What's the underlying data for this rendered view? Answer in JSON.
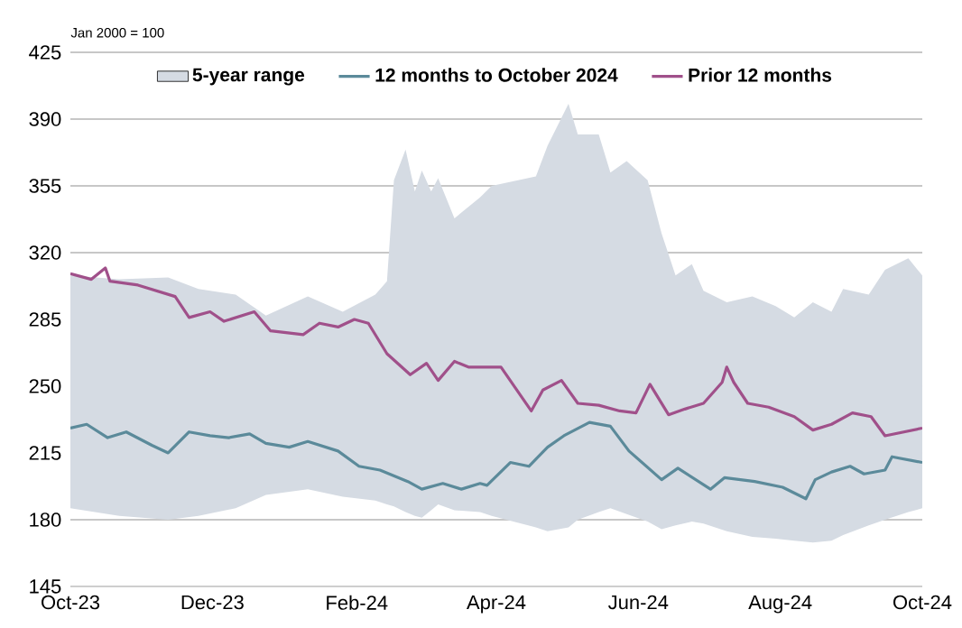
{
  "chart_data": {
    "type": "line",
    "annotations": [
      "Jan 2000 = 100"
    ],
    "xlim": [
      "2023-10-01",
      "2024-10-01"
    ],
    "xticks": [
      {
        "value": "2023-10-01",
        "label": "Oct-23"
      },
      {
        "value": "2023-12-01",
        "label": "Dec-23"
      },
      {
        "value": "2024-02-01",
        "label": "Feb-24"
      },
      {
        "value": "2024-04-01",
        "label": "Apr-24"
      },
      {
        "value": "2024-06-01",
        "label": "Jun-24"
      },
      {
        "value": "2024-08-01",
        "label": "Aug-24"
      },
      {
        "value": "2024-10-01",
        "label": "Oct-24"
      }
    ],
    "ylim": [
      145,
      425
    ],
    "yticks": [
      145,
      180,
      215,
      250,
      285,
      320,
      355,
      390,
      425
    ],
    "grid": "y",
    "legend": "top",
    "series": [
      {
        "name": "5-year range",
        "type": "area",
        "color": "#d5dbe3",
        "x": [
          "2023-10-01",
          "2023-10-22",
          "2023-11-12",
          "2023-11-25",
          "2023-12-11",
          "2023-12-24",
          "2024-01-11",
          "2024-01-26",
          "2024-02-09",
          "2024-02-14",
          "2024-02-17",
          "2024-02-22",
          "2024-02-26",
          "2024-02-29",
          "2024-03-04",
          "2024-03-07",
          "2024-03-14",
          "2024-03-25",
          "2024-03-30",
          "2024-04-18",
          "2024-04-23",
          "2024-05-02",
          "2024-05-06",
          "2024-05-15",
          "2024-05-20",
          "2024-05-27",
          "2024-06-05",
          "2024-06-11",
          "2024-06-17",
          "2024-06-24",
          "2024-06-29",
          "2024-07-09",
          "2024-07-20",
          "2024-07-30",
          "2024-08-07",
          "2024-08-15",
          "2024-08-23",
          "2024-08-28",
          "2024-09-08",
          "2024-09-15",
          "2024-09-25",
          "2024-10-01"
        ],
        "values": [
          null,
          null,
          null,
          null,
          null,
          null,
          null,
          null,
          null,
          null,
          null,
          null,
          null,
          null,
          null,
          null,
          null,
          null,
          null,
          null,
          null,
          null,
          null,
          null,
          null,
          null,
          null,
          null,
          null,
          null,
          null,
          null,
          null,
          null,
          null,
          null,
          null,
          null,
          null,
          null,
          null,
          null
        ],
        "upper": [
          308,
          306,
          307,
          301,
          298,
          287,
          297,
          289,
          298,
          305,
          358,
          374,
          352,
          363,
          352,
          359,
          338,
          349,
          355,
          360,
          376,
          398,
          382,
          382,
          362,
          368,
          358,
          330,
          308,
          314,
          300,
          294,
          297,
          292,
          286,
          294,
          289,
          301,
          298,
          311,
          317,
          308
        ],
        "lower": [
          186,
          182,
          180,
          182,
          186,
          193,
          196,
          192,
          190,
          188,
          187,
          184,
          182,
          181,
          185,
          188,
          185,
          184,
          182,
          176,
          174,
          176,
          180,
          184,
          186,
          183,
          179,
          175,
          177,
          179,
          178,
          174,
          171,
          170,
          169,
          168,
          169,
          172,
          177,
          180,
          184,
          186
        ]
      },
      {
        "name": "12 months to October 2024",
        "color": "#5b8a9a",
        "x": [
          "2023-10-01",
          "2023-10-08",
          "2023-10-17",
          "2023-10-25",
          "2023-11-05",
          "2023-11-12",
          "2023-11-21",
          "2023-11-30",
          "2023-12-08",
          "2023-12-17",
          "2023-12-24",
          "2024-01-03",
          "2024-01-11",
          "2024-01-24",
          "2024-02-02",
          "2024-02-11",
          "2024-02-23",
          "2024-02-29",
          "2024-03-09",
          "2024-03-17",
          "2024-03-25",
          "2024-03-28",
          "2024-04-07",
          "2024-04-15",
          "2024-04-23",
          "2024-04-30",
          "2024-05-11",
          "2024-05-20",
          "2024-05-28",
          "2024-06-11",
          "2024-06-18",
          "2024-07-02",
          "2024-07-08",
          "2024-07-21",
          "2024-08-02",
          "2024-08-12",
          "2024-08-16",
          "2024-08-23",
          "2024-08-31",
          "2024-09-06",
          "2024-09-15",
          "2024-09-18",
          "2024-10-01"
        ],
        "values": [
          228,
          230,
          223,
          226,
          219,
          215,
          226,
          224,
          223,
          225,
          220,
          218,
          221,
          216,
          208,
          206,
          200,
          196,
          199,
          196,
          199,
          198,
          210,
          208,
          218,
          224,
          231,
          229,
          216,
          201,
          207,
          196,
          202,
          200,
          197,
          191,
          201,
          205,
          208,
          204,
          206,
          213,
          210
        ]
      },
      {
        "name": "Prior 12 months",
        "color": "#a0508a",
        "x": [
          "2023-10-01",
          "2023-10-10",
          "2023-10-16",
          "2023-10-18",
          "2023-10-30",
          "2023-11-15",
          "2023-11-21",
          "2023-11-30",
          "2023-12-06",
          "2023-12-19",
          "2023-12-26",
          "2024-01-09",
          "2024-01-16",
          "2024-01-24",
          "2024-01-31",
          "2024-02-06",
          "2024-02-14",
          "2024-02-24",
          "2024-03-02",
          "2024-03-07",
          "2024-03-14",
          "2024-03-20",
          "2024-04-03",
          "2024-04-16",
          "2024-04-21",
          "2024-04-29",
          "2024-05-06",
          "2024-05-15",
          "2024-05-24",
          "2024-05-31",
          "2024-06-06",
          "2024-06-14",
          "2024-06-21",
          "2024-06-29",
          "2024-07-07",
          "2024-07-09",
          "2024-07-12",
          "2024-07-18",
          "2024-07-27",
          "2024-08-07",
          "2024-08-15",
          "2024-08-23",
          "2024-09-01",
          "2024-09-09",
          "2024-09-15",
          "2024-09-23",
          "2024-10-01"
        ],
        "values": [
          309,
          306,
          312,
          305,
          303,
          297,
          286,
          289,
          284,
          289,
          279,
          277,
          283,
          281,
          285,
          283,
          267,
          256,
          262,
          253,
          263,
          260,
          260,
          237,
          248,
          253,
          241,
          240,
          237,
          236,
          251,
          235,
          238,
          241,
          252,
          260,
          252,
          241,
          239,
          234,
          227,
          230,
          236,
          234,
          224,
          226,
          228
        ]
      }
    ]
  }
}
